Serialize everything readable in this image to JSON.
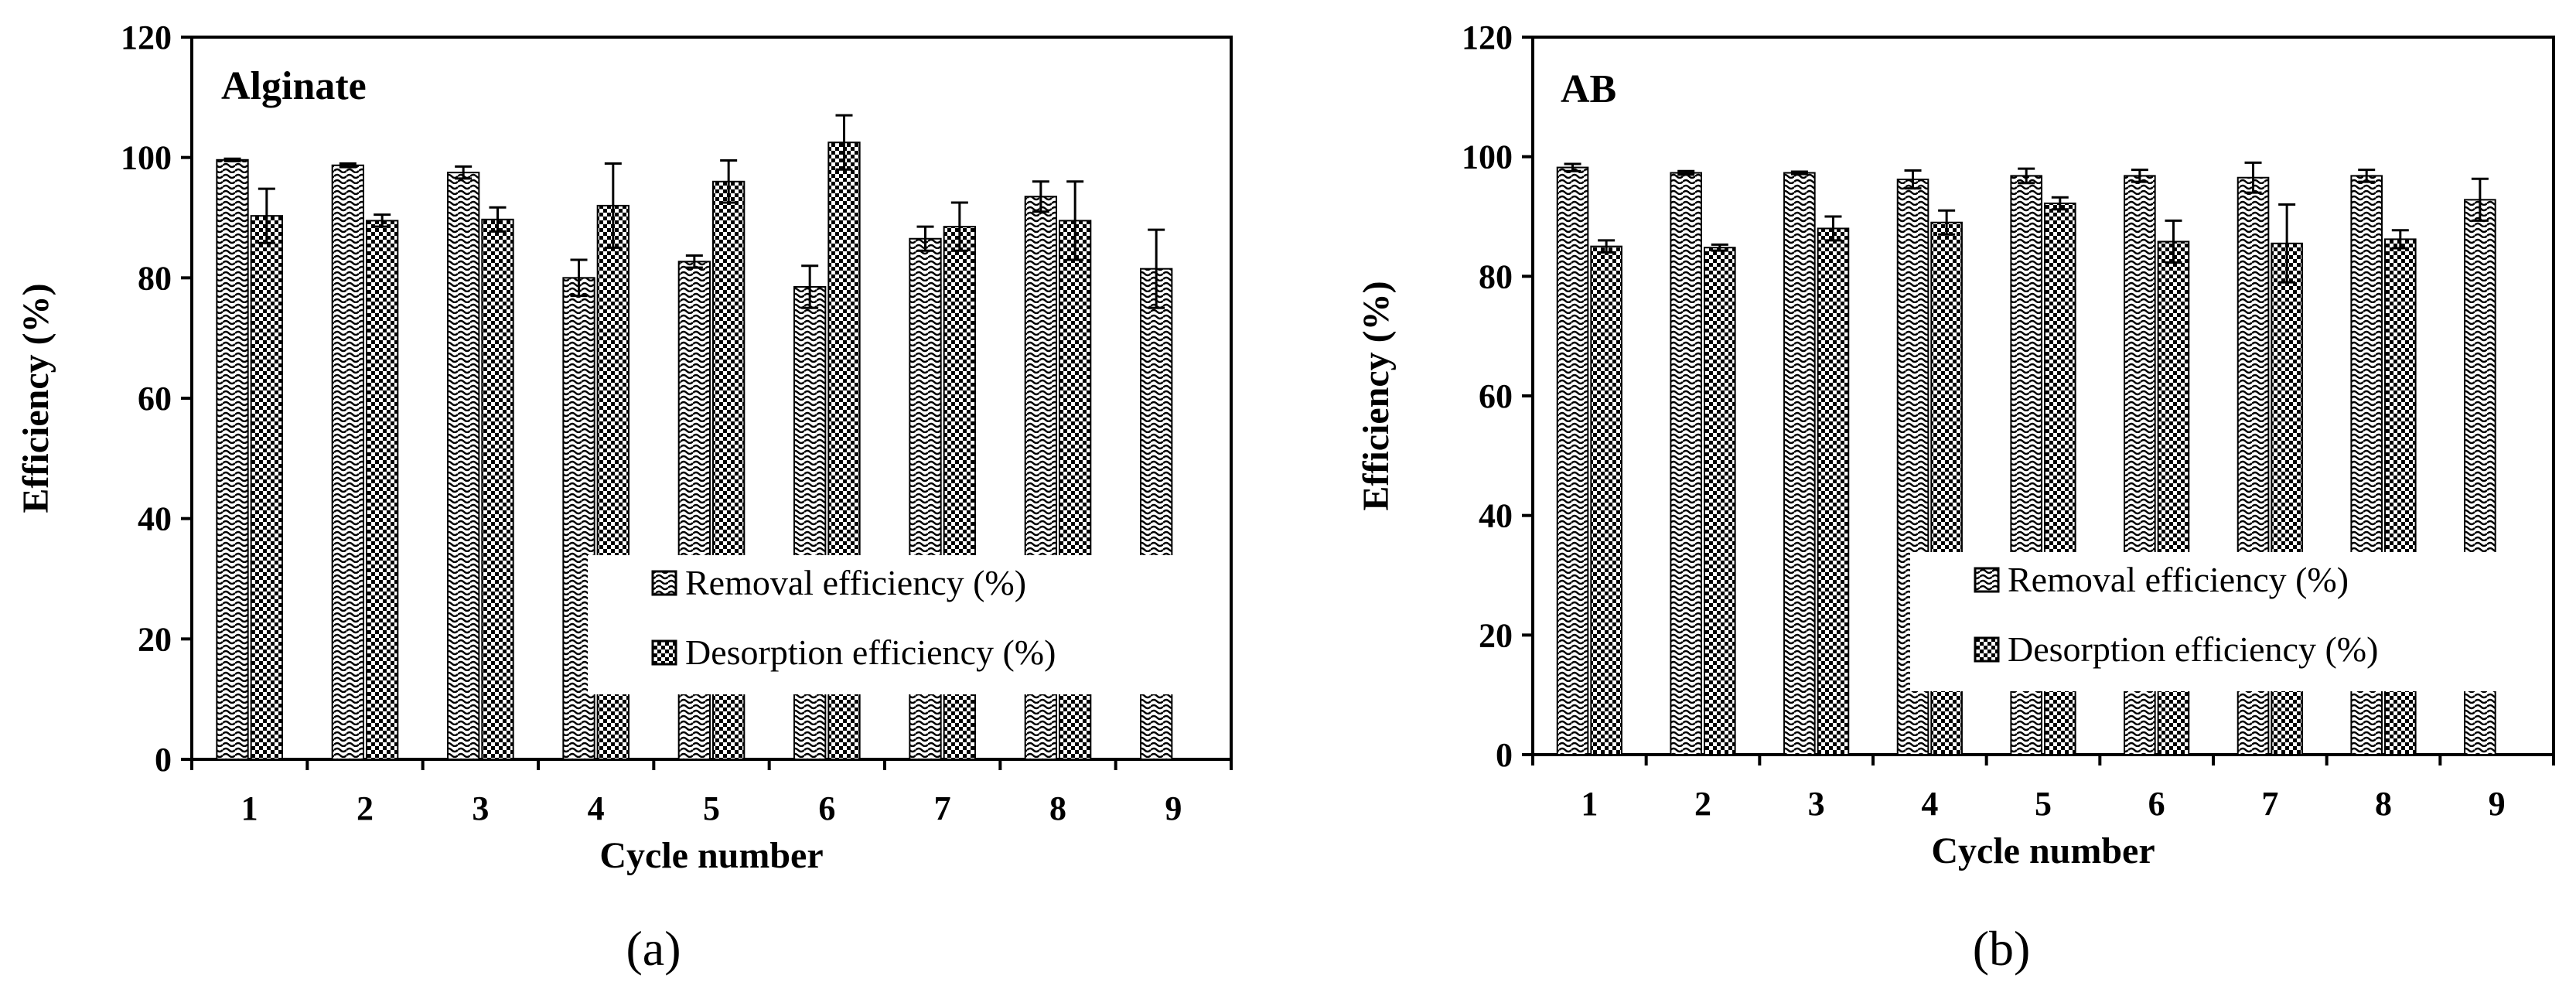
{
  "chart_data": [
    {
      "type": "bar",
      "panel_label": "(a)",
      "title": "Alginate",
      "xlabel": "Cycle number",
      "ylabel": "Efficiency (%)",
      "categories": [
        "1",
        "2",
        "3",
        "4",
        "5",
        "6",
        "7",
        "8",
        "9"
      ],
      "ylim": [
        0,
        120
      ],
      "yticks": [
        0,
        20,
        40,
        60,
        80,
        100,
        120
      ],
      "grid": false,
      "legend_position": "bottom-right",
      "series": [
        {
          "name": "Removal efficiency (%)",
          "pattern": "wave",
          "values": [
            99.6,
            98.7,
            97.5,
            80.0,
            82.7,
            78.5,
            86.5,
            93.5,
            81.5
          ],
          "errors": [
            0.2,
            0.3,
            1.0,
            3.0,
            1.0,
            3.5,
            2.0,
            2.5,
            6.5
          ]
        },
        {
          "name": "Desorption efficiency (%)",
          "pattern": "checker",
          "values": [
            90.3,
            89.5,
            89.7,
            92.0,
            96.0,
            102.5,
            88.5,
            89.5,
            null
          ],
          "errors": [
            4.5,
            1.0,
            2.0,
            7.0,
            3.5,
            4.5,
            4.0,
            6.5,
            null
          ]
        }
      ]
    },
    {
      "type": "bar",
      "panel_label": "(b)",
      "title": "AB",
      "xlabel": "Cycle number",
      "ylabel": "Efficiency (%)",
      "categories": [
        "1",
        "2",
        "3",
        "4",
        "5",
        "6",
        "7",
        "8",
        "9"
      ],
      "ylim": [
        0,
        120
      ],
      "yticks": [
        0,
        20,
        40,
        60,
        80,
        100,
        120
      ],
      "grid": false,
      "legend_position": "bottom-right",
      "series": [
        {
          "name": "Removal efficiency (%)",
          "pattern": "wave",
          "values": [
            98.2,
            97.3,
            97.3,
            96.2,
            96.8,
            96.8,
            96.5,
            96.8,
            92.8
          ],
          "errors": [
            0.6,
            0.3,
            0.2,
            1.5,
            1.2,
            1.0,
            2.5,
            1.0,
            3.5
          ]
        },
        {
          "name": "Desorption efficiency (%)",
          "pattern": "checker",
          "values": [
            85.0,
            84.8,
            88.0,
            89.0,
            92.2,
            85.8,
            85.5,
            86.2,
            null
          ],
          "errors": [
            1.0,
            0.5,
            2.0,
            2.0,
            1.0,
            3.5,
            6.5,
            1.5,
            null
          ]
        }
      ]
    }
  ]
}
